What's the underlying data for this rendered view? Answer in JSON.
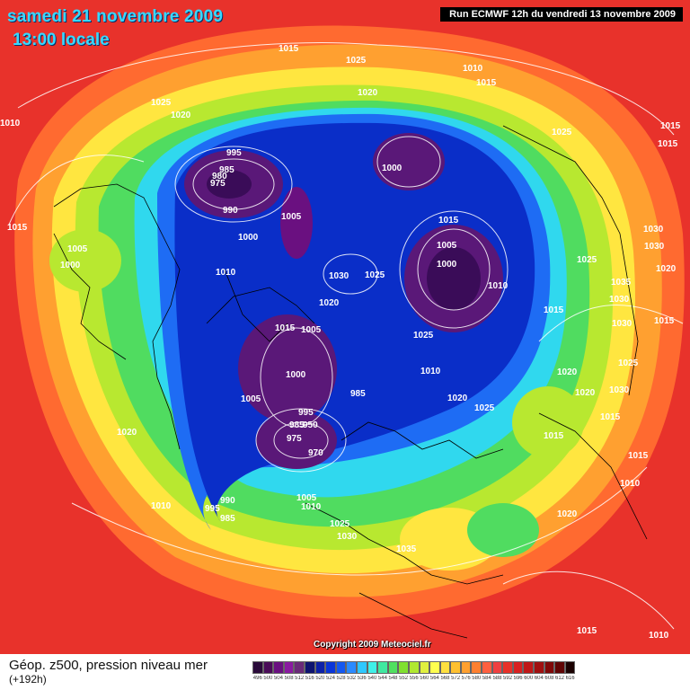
{
  "header": {
    "date_title": "samedi 21 novembre 2009",
    "time_title": "13:00 locale",
    "run_info": "Run ECMWF 12h du vendredi 13 novembre 2009"
  },
  "footer": {
    "legend_title": "Géop. z500, pression niveau mer",
    "legend_subtitle": "(+192h)",
    "copyright": "Copyright 2009 Meteociel.fr"
  },
  "scale": {
    "values": [
      "496",
      "500",
      "504",
      "508",
      "512",
      "516",
      "520",
      "524",
      "528",
      "532",
      "536",
      "540",
      "544",
      "548",
      "552",
      "556",
      "560",
      "564",
      "568",
      "572",
      "576",
      "580",
      "584",
      "588",
      "592",
      "596",
      "600",
      "604",
      "608",
      "612",
      "616"
    ],
    "colors": [
      "#2a0a3a",
      "#4a0c58",
      "#6a1080",
      "#8a1aa0",
      "#6a2a78",
      "#0e1470",
      "#0d21a8",
      "#0a35d8",
      "#1458f0",
      "#2a8aff",
      "#2ec8ff",
      "#3ff0e8",
      "#40e8a0",
      "#50e060",
      "#80e030",
      "#b0e830",
      "#e0f040",
      "#ffff50",
      "#ffe040",
      "#ffc030",
      "#ffa030",
      "#ff8030",
      "#ff6040",
      "#f04040",
      "#e83028",
      "#d82020",
      "#c01818",
      "#a01010",
      "#800808",
      "#600404",
      "#1a0000"
    ]
  },
  "pressure_labels": [
    "1015",
    "1025",
    "1010",
    "1015",
    "1010",
    "1015",
    "1015",
    "1025",
    "1020",
    "1020",
    "995",
    "985",
    "980",
    "975",
    "1000",
    "990",
    "1005",
    "1000",
    "1015",
    "1005",
    "1010",
    "1030",
    "1025",
    "1000",
    "1005",
    "1010",
    "1015",
    "1030",
    "1025",
    "1020",
    "1015",
    "1005",
    "1000",
    "1025",
    "1030",
    "1035",
    "1030",
    "1030",
    "1020",
    "1015",
    "1010",
    "1020",
    "985",
    "1025",
    "1000",
    "1005",
    "995",
    "985",
    "950",
    "975",
    "970",
    "1015",
    "1015",
    "1015",
    "1020",
    "1010",
    "990",
    "995",
    "985",
    "1005",
    "1010",
    "1025",
    "1030",
    "1035",
    "1020",
    "1015",
    "1010",
    "1010",
    "1030",
    "1020",
    "1025",
    "1020",
    "1025",
    "1015"
  ]
}
